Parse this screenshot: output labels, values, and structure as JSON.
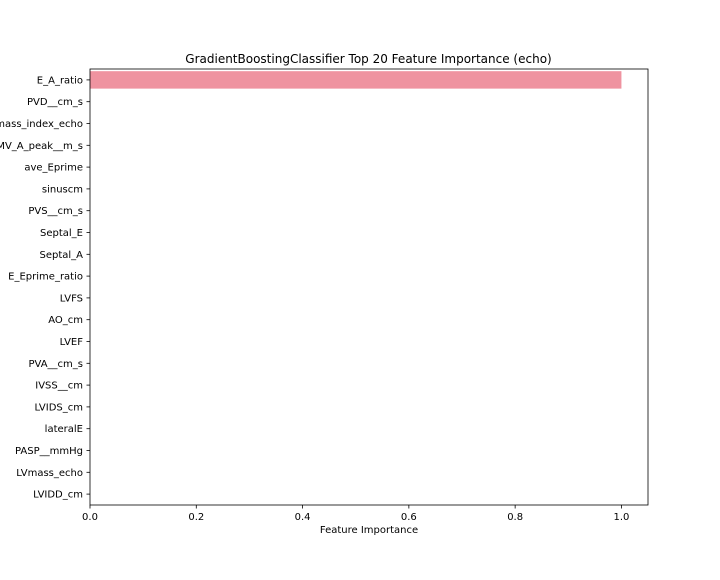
{
  "chart_data": {
    "type": "bar",
    "orientation": "horizontal",
    "title": "GradientBoostingClassifier Top 20 Feature Importance (echo)",
    "xlabel": "Feature Importance",
    "ylabel": "",
    "xlim": [
      0.0,
      1.05
    ],
    "xticks": [
      0.0,
      0.2,
      0.4,
      0.6,
      0.8,
      1.0
    ],
    "xtick_labels": [
      "0.0",
      "0.2",
      "0.4",
      "0.6",
      "0.8",
      "1.0"
    ],
    "grid": false,
    "categories": [
      "E_A_ratio",
      "PVD__cm_s",
      "LVmass_index_echo",
      "MV_A_peak__m_s",
      "ave_Eprime",
      "sinuscm",
      "PVS__cm_s",
      "Septal_E",
      "Septal_A",
      "E_Eprime_ratio",
      "LVFS",
      "AO_cm",
      "LVEF",
      "PVA__cm_s",
      "IVSS__cm",
      "LVIDS_cm",
      "lateralE",
      "PASP__mmHg",
      "LVmass_echo",
      "LVIDD_cm"
    ],
    "values": [
      1.0,
      0.0,
      0.0,
      0.0,
      0.0,
      0.0,
      0.0,
      0.0,
      0.0,
      0.0,
      0.0,
      0.0,
      0.0,
      0.0,
      0.0,
      0.0,
      0.0,
      0.0,
      0.0,
      0.0
    ],
    "colors": [
      "#ef93a0",
      "#ef9a6e",
      "#cfa43a",
      "#b2ad3a",
      "#8db43a",
      "#4fbb3f",
      "#3fbb86",
      "#3eb8a4",
      "#3fb5b7",
      "#3eb1c9",
      "#40abe0",
      "#7aa1ec",
      "#a995ef",
      "#d486ef",
      "#ef7fd8",
      "#ef86c3",
      "#ef8cae",
      "#ef93a0",
      "#ef9a6e",
      "#cfa43a"
    ]
  }
}
